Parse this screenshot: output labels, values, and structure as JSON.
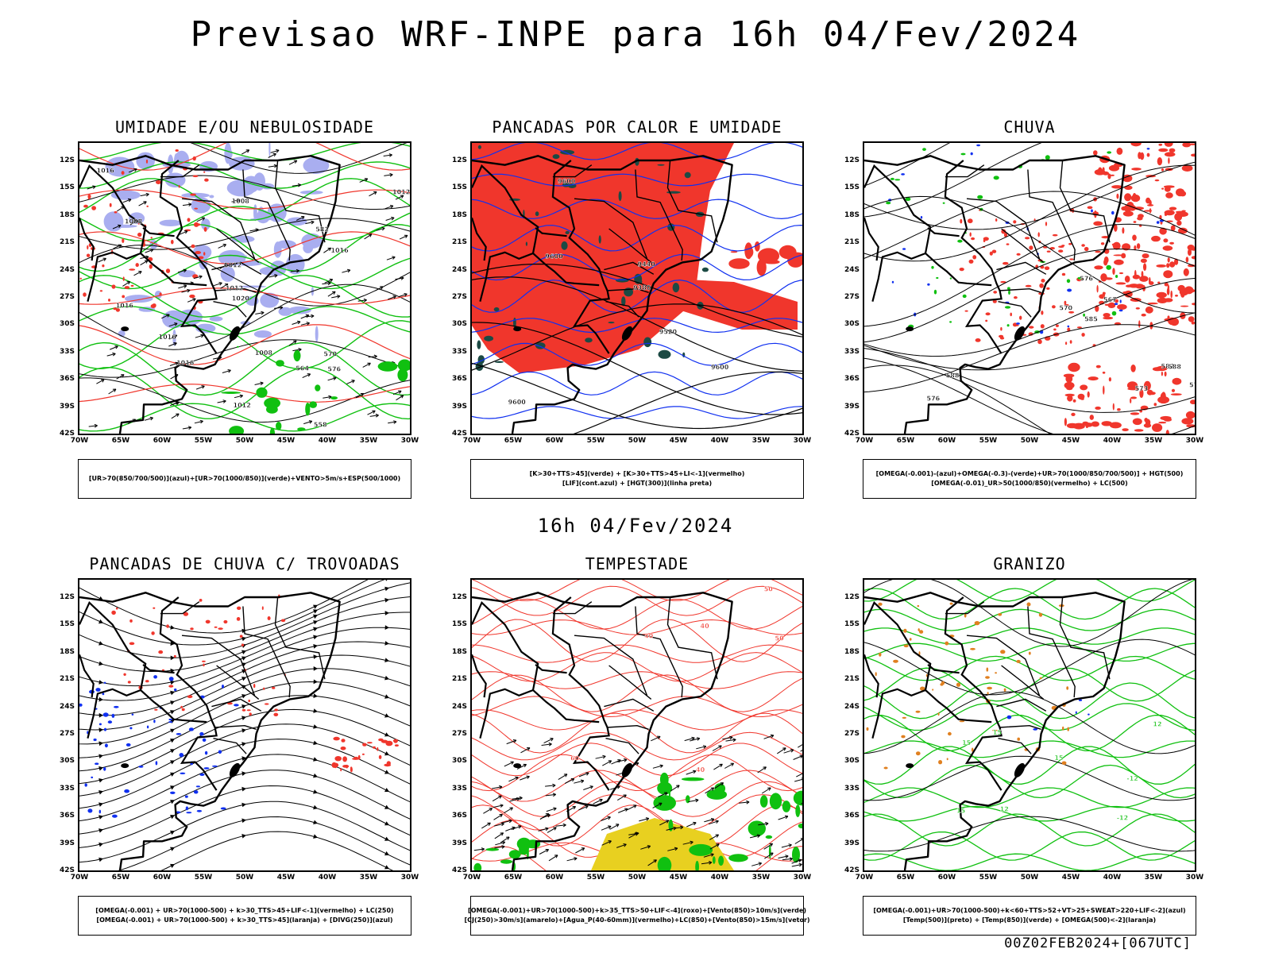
{
  "title": "Previsao WRF-INPE  para 16h 04/Fev/2024",
  "subtitle": "16h 04/Fev/2024",
  "run_label": "00Z02FEB2024+[067UTC]",
  "axis": {
    "lat_labels": [
      "12S",
      "15S",
      "18S",
      "21S",
      "24S",
      "27S",
      "30S",
      "33S",
      "36S",
      "39S",
      "42S"
    ],
    "lon_labels": [
      "70W",
      "65W",
      "60W",
      "55W",
      "50W",
      "45W",
      "40W",
      "35W",
      "30W"
    ]
  },
  "colors": {
    "red": "#f0362c",
    "green": "#10c010",
    "blue": "#1030f0",
    "lavender": "#a9aef0",
    "darkgreen": "#1c4a44",
    "yellow": "#e8d020",
    "orange": "#e08020"
  },
  "panels": [
    {
      "id": "umidade",
      "title": "UMIDADE E/OU NEBULOSIDADE",
      "legend": [
        "[UR>70(850/700/500)](azul)+[UR>70(1000/850)](verde)+VENTO>5m/s+ESP(500/1000)"
      ],
      "contour_labels": [
        "1012",
        "1012",
        "1008",
        "1016",
        "1016",
        "1012",
        "1008",
        "1016",
        "1020",
        "1012",
        "1016",
        "1016",
        "1008",
        "576",
        "570",
        "582",
        "564",
        "558"
      ]
    },
    {
      "id": "pancadas",
      "title": "PANCADAS POR CALOR E UMIDADE",
      "legend": [
        "[K>30+TTS>45](verde) + [K>30+TTS>45+LI<-1](vermelho)",
        "[LIF](cont.azul) + [HGT(300)](linha preta)"
      ],
      "contour_labels": [
        "9600",
        "9600",
        "9600",
        "9600",
        "9520",
        "9440",
        "9380"
      ]
    },
    {
      "id": "chuva",
      "title": "CHUVA",
      "legend": [
        "[OMEGA(-0.001)-(azul)+OMEGA(-0.3)-(verde)+UR>70(1000/850/700/500)] + HGT(500)",
        "[OMEGA(-0.01)_UR>50(1000/850)(vermelho) + LC(500)"
      ],
      "contour_labels": [
        "588",
        "585",
        "582",
        "579",
        "576",
        "573",
        "570",
        "567",
        "588",
        "576"
      ]
    },
    {
      "id": "trovoadas",
      "title": "PANCADAS DE CHUVA C/ TROVOADAS",
      "legend": [
        "[OMEGA(-0.001) + UR>70(1000-500) + k>30_TTS>45+LIF<-1](vermelho) + LC(250)",
        "[OMEGA(-0.001) + UR>70(1000-500) + k>30_TTS>45](laranja) + [DIVG(250)](azul)"
      ]
    },
    {
      "id": "tempestade",
      "title": "TEMPESTADE",
      "legend": [
        "[OMEGA(-0.001)+UR>70(1000-500)+k>35_TTS>50+LIF<-4](roxo)+[Vento(850)>10m/s](verde)",
        "[CJ(250)>30m/s](amarelo)+[Agua_P(40-60mm)](vermelho)+LC(850)+[Vento(850)>15m/s](vetor)"
      ],
      "contour_labels": [
        "40",
        "40",
        "50",
        "50",
        "60",
        "40"
      ]
    },
    {
      "id": "granizo",
      "title": "GRANIZO",
      "legend": [
        "[OMEGA(-0.001)+UR>70(1000-500)+k<60+TTS>52+VT>25+SWEAT>220+LIF<-2](azul)",
        "[Temp(500)](preto) + [Temp(850)](verde) + [OMEGA(500)<-2](laranja)"
      ],
      "contour_labels": [
        "15",
        "15",
        "15",
        "15",
        "12",
        "-12",
        "-12",
        "12"
      ]
    }
  ]
}
